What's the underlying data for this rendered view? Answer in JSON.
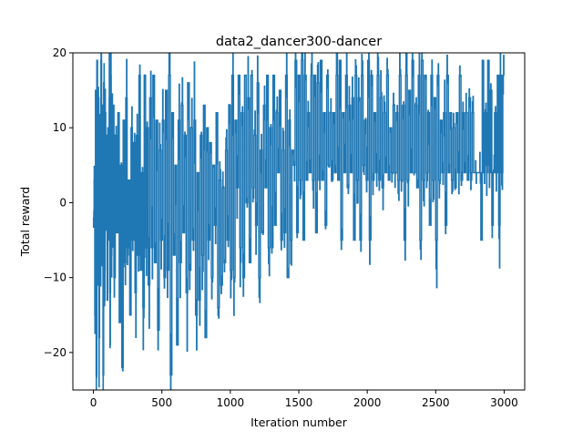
{
  "chart_data": {
    "type": "line",
    "title": "data2_dancer300-dancer",
    "xlabel": "Iteration number",
    "ylabel": "Total reward",
    "xlim": [
      -150,
      3150
    ],
    "ylim": [
      -25,
      20
    ],
    "xticks": [
      0,
      500,
      1000,
      1500,
      2000,
      2500,
      3000
    ],
    "xtick_labels": [
      "0",
      "500",
      "1000",
      "1500",
      "2000",
      "2500",
      "3000"
    ],
    "yticks": [
      -20,
      -10,
      0,
      10,
      20
    ],
    "ytick_labels": [
      "−20",
      "−10",
      "0",
      "10",
      "20"
    ],
    "grid": false,
    "series": [
      {
        "color": "#1f77b4",
        "n_points": 3000,
        "segments": [
          {
            "x_range": [
              0,
              150
            ],
            "values": [
              -2,
              3,
              -15,
              15,
              -23,
              19,
              -11,
              14,
              -18,
              11,
              -5,
              19,
              -8,
              13,
              -23,
              16,
              -9,
              12,
              -3,
              9,
              -13,
              10,
              -5,
              14,
              -12,
              17,
              -7,
              11,
              -4,
              13
            ]
          },
          {
            "x_range": [
              150,
              400
            ],
            "values": [
              -10,
              9,
              -4,
              12,
              -16,
              5,
              -22,
              11,
              -8,
              14,
              -6,
              3,
              -15,
              10,
              -5,
              8,
              -12,
              9,
              -7,
              17,
              -9,
              4,
              -14,
              17,
              -6,
              10
            ]
          },
          {
            "x_range": [
              400,
              700
            ],
            "values": [
              -11,
              14,
              -6,
              17,
              -8,
              11,
              -17,
              7,
              -5,
              11,
              -10,
              15,
              -9,
              17,
              -23,
              12,
              -7,
              5,
              -19,
              11,
              -8,
              13,
              -4,
              9,
              -12,
              16
            ]
          },
          {
            "x_range": [
              700,
              1000
            ],
            "values": [
              -9,
              10,
              -5,
              11,
              -15,
              4,
              -13,
              9,
              -7,
              13,
              -18,
              10,
              -5,
              8,
              -10,
              5,
              -3,
              12,
              -14,
              3,
              -11,
              2,
              -8,
              7,
              -5,
              13
            ]
          },
          {
            "x_range": [
              1000,
              1300
            ],
            "values": [
              -9,
              17,
              -10,
              11,
              2,
              17,
              -6,
              12,
              -10,
              17,
              0,
              14,
              -8,
              17,
              2,
              9,
              -3,
              16,
              -10,
              7,
              -4,
              13,
              2,
              17,
              -6,
              10
            ]
          },
          {
            "x_range": [
              1300,
              1600
            ],
            "values": [
              -6,
              17,
              -3,
              12,
              4,
              15,
              -5,
              7,
              -4,
              17,
              -10,
              11,
              -5,
              7,
              5,
              19,
              -4,
              17,
              3,
              19,
              -5,
              17,
              3,
              12,
              4,
              17
            ]
          },
          {
            "x_range": [
              1600,
              1900
            ],
            "values": [
              3,
              17,
              -4,
              16,
              3,
              19,
              3,
              12,
              -3,
              17,
              5,
              12,
              3,
              12,
              4,
              17,
              3,
              19,
              -5,
              12,
              4,
              17,
              2,
              13,
              4,
              14
            ]
          },
          {
            "x_range": [
              1900,
              2200
            ],
            "values": [
              -5,
              17,
              3,
              14,
              -5,
              17,
              5,
              11,
              3,
              19,
              -5,
              17,
              3,
              12,
              4,
              17,
              3,
              14,
              2,
              12,
              4,
              17,
              3,
              10,
              4,
              13
            ]
          },
          {
            "x_range": [
              2200,
              2500
            ],
            "values": [
              4,
              12,
              3,
              17,
              3,
              13,
              -5,
              17,
              3,
              15,
              4,
              19,
              4,
              13,
              2,
              17,
              -5,
              19,
              3,
              17,
              4,
              12,
              -3,
              17,
              3,
              14
            ]
          },
          {
            "x_range": [
              2500,
              2800
            ],
            "values": [
              -5,
              17,
              3,
              11,
              4,
              12,
              -3,
              17,
              4,
              12,
              3,
              10,
              2,
              12,
              4,
              17,
              3,
              12,
              4,
              12,
              3,
              14,
              4,
              12,
              4,
              4
            ]
          },
          {
            "x_range": [
              2800,
              3000
            ],
            "values": [
              4,
              4,
              4,
              -5,
              19,
              4,
              12,
              5,
              19,
              4,
              15,
              -3,
              4,
              12,
              4,
              17,
              -3,
              17,
              4,
              17
            ]
          }
        ]
      }
    ]
  }
}
